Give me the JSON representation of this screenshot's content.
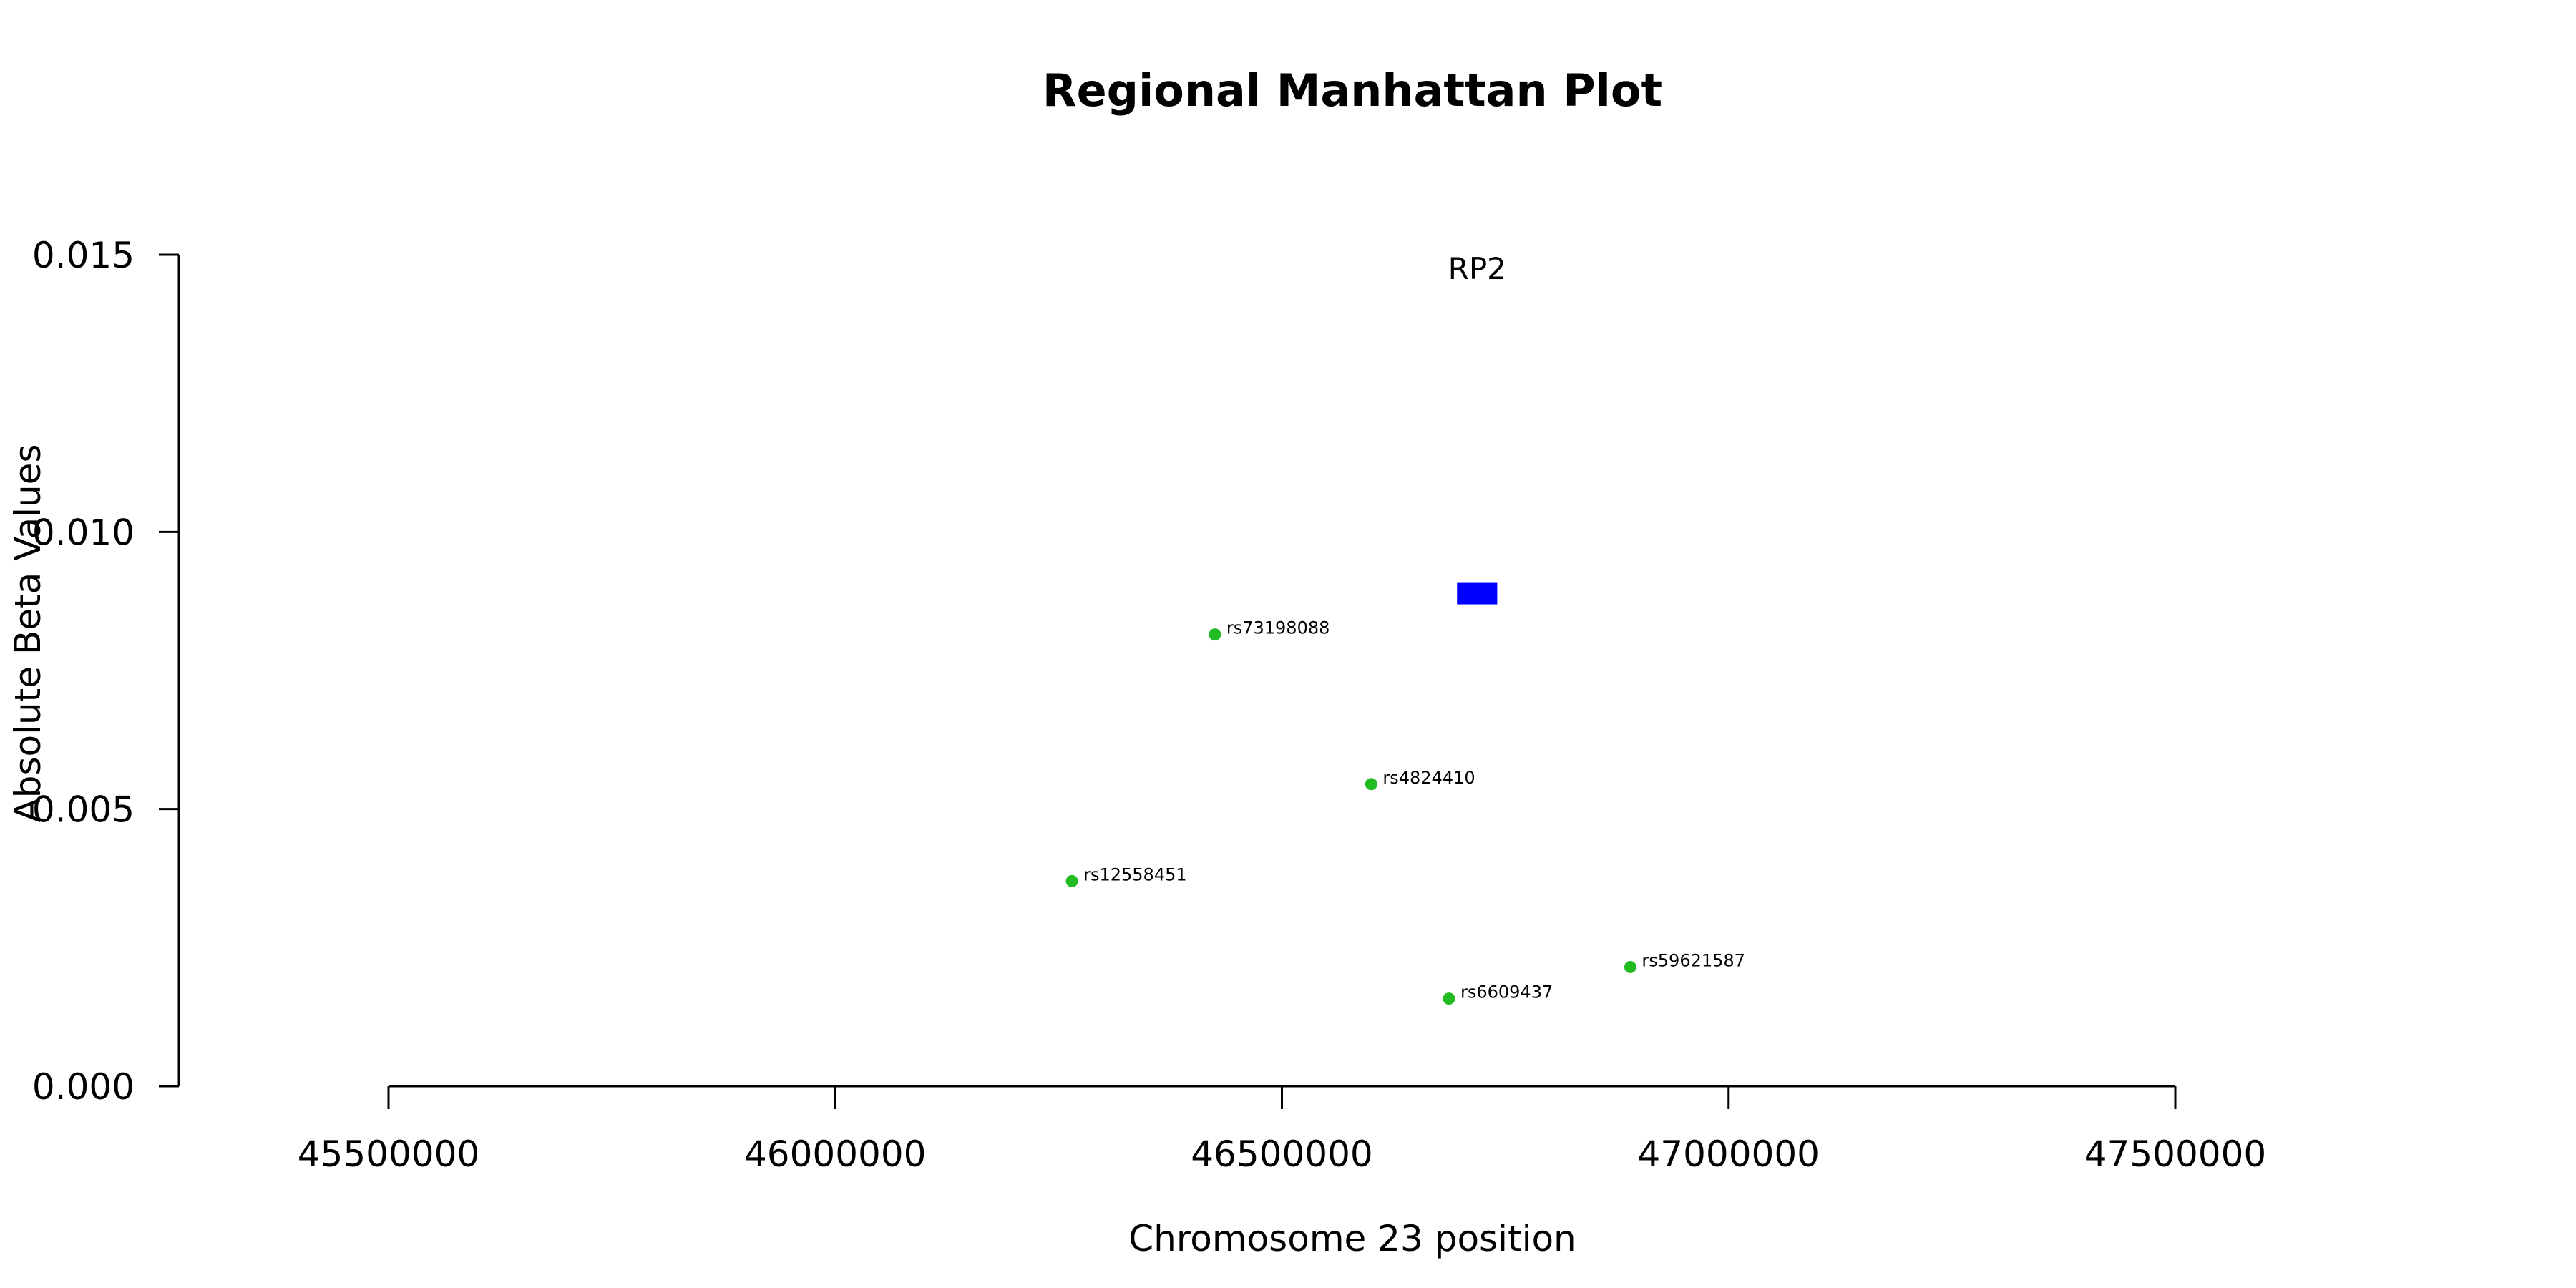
{
  "chart_data": {
    "type": "scatter",
    "title": "Regional Manhattan Plot",
    "xlabel": "Chromosome 23 position",
    "ylabel": "Absolute Beta Values",
    "xlim": [
      45500000,
      47500000
    ],
    "ylim": [
      0,
      0.015
    ],
    "xticks": [
      45500000,
      46000000,
      46500000,
      47000000,
      47500000
    ],
    "xtick_labels": [
      "45500000",
      "46000000",
      "46500000",
      "47000000",
      "47500000"
    ],
    "yticks": [
      0,
      0.005,
      0.01,
      0.015
    ],
    "ytick_labels": [
      "0.000",
      "0.005",
      "0.010",
      "0.015"
    ],
    "grid": false,
    "point_color": "#22bb22",
    "gene_color": "#0000ff",
    "points": [
      {
        "label": "rs73198088",
        "x": 46425000,
        "y": 0.00815
      },
      {
        "label": "rs4824410",
        "x": 46600000,
        "y": 0.00545
      },
      {
        "label": "rs12558451",
        "x": 46265000,
        "y": 0.0037
      },
      {
        "label": "rs59621587",
        "x": 46890000,
        "y": 0.00215
      },
      {
        "label": "rs6609437",
        "x": 46687000,
        "y": 0.00158
      }
    ],
    "genes": [
      {
        "name": "RP2",
        "start": 46696000,
        "end": 46741000,
        "y": 0.0089
      }
    ]
  }
}
